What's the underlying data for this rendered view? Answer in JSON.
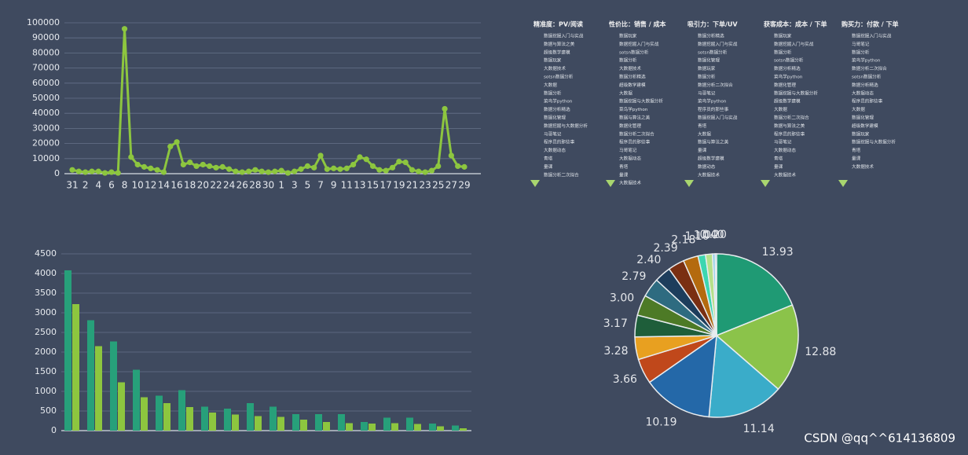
{
  "chart_data": [
    {
      "type": "line",
      "color": "#8dc63f",
      "ylim": [
        0,
        100000
      ],
      "yticks": [
        0,
        10000,
        20000,
        30000,
        40000,
        50000,
        60000,
        70000,
        80000,
        90000,
        100000
      ],
      "categories": [
        "31",
        null,
        "2",
        null,
        "4",
        null,
        "6",
        null,
        "8",
        null,
        "10",
        null,
        "12",
        null,
        "14",
        null,
        "16",
        null,
        "18",
        null,
        "20",
        null,
        "22",
        null,
        "24",
        null,
        "26",
        null,
        "28",
        null,
        "30",
        null,
        "1",
        null,
        "3",
        null,
        "5",
        null,
        "7",
        null,
        "9",
        null,
        "11",
        null,
        "13",
        null,
        "15",
        null,
        "17",
        null,
        "19",
        null,
        "21",
        null,
        "23",
        null,
        "25",
        null,
        "27",
        null,
        "29"
      ],
      "values": [
        2500,
        1500,
        1000,
        1500,
        1500,
        500,
        1000,
        500,
        96000,
        11000,
        6000,
        4500,
        3500,
        2500,
        1000,
        18000,
        21000,
        6000,
        7500,
        5000,
        6000,
        5000,
        4000,
        4500,
        3000,
        1500,
        1000,
        1500,
        2500,
        1500,
        1000,
        1500,
        2000,
        500,
        1500,
        3000,
        5000,
        4000,
        12000,
        3000,
        3500,
        3000,
        3500,
        6000,
        11000,
        9500,
        5000,
        2500,
        2000,
        4000,
        8000,
        7500,
        2500,
        1500,
        1000,
        2000,
        5000,
        43000,
        12000,
        5000,
        4500
      ],
      "grid": true
    },
    {
      "type": "bar",
      "ylim": [
        0,
        4500
      ],
      "yticks": [
        0,
        500,
        1000,
        1500,
        2000,
        2500,
        3000,
        3500,
        4000,
        4500
      ],
      "grid": true,
      "series": [
        {
          "color": "#27a07a",
          "values": [
            4080,
            2810,
            2270,
            1550,
            890,
            1030,
            610,
            560,
            700,
            610,
            420,
            420,
            420,
            220,
            330,
            330,
            180,
            130
          ]
        },
        {
          "color": "#8dc63f",
          "values": [
            3220,
            2150,
            1230,
            850,
            700,
            600,
            460,
            410,
            370,
            350,
            280,
            220,
            190,
            180,
            190,
            170,
            110,
            60
          ]
        }
      ]
    },
    {
      "type": "pie",
      "values": [
        13.93,
        12.88,
        11.14,
        10.19,
        3.66,
        3.28,
        3.17,
        3.0,
        2.79,
        2.4,
        2.39,
        2.18,
        1.1,
        1.0,
        0.4,
        0.2
      ],
      "value_labels": [
        "13.93",
        "12.88",
        "11.14",
        "10.19",
        "3.66",
        "3.28",
        "3.17",
        "3.00",
        "2.79",
        "2.40",
        "2.39",
        "2.18",
        "1.10",
        "1.00",
        "0.40",
        "0.20"
      ],
      "colors": [
        "#1f9a74",
        "#8bc34a",
        "#3aacc9",
        "#2468a8",
        "#c0481b",
        "#e8a020",
        "#1e5e3a",
        "#4d7a26",
        "#2e6b80",
        "#1d3d5c",
        "#7a2f12",
        "#b46a0e",
        "#3dd6b0",
        "#b5e08a",
        "#8ed0e8",
        "#2a7fd0"
      ]
    }
  ],
  "rankings": [
    {
      "title": "精准度：PV/阅读",
      "items": [
        "数据挖掘入门与实战",
        "数据与算法之美",
        "超级数学建模",
        "数据玩家",
        "大数据技术",
        "sotsn数据分析",
        "大数据",
        "数据分析",
        "菜鸟学python",
        "数据分析精选",
        "数据化管理",
        "数据挖掘与大数据分析",
        "马哥笔记",
        "程序员的那些事",
        "大数据动态",
        "青塔",
        "量课",
        "数据分析二次拟合"
      ]
    },
    {
      "title": "性价比：销售 / 成本",
      "items": [
        "数据玩家",
        "数据挖掘入门与实战",
        "sotsn数据分析",
        "数据分析",
        "大数据技术",
        "数据分析精选",
        "超级数学建模",
        "大数据",
        "数据挖掘与大数据分析",
        "菜鸟学python",
        "数据与算法之美",
        "数据化管理",
        "数据分析二次拟合",
        "程序员的那些事",
        "马哥笔记",
        "大数据动态",
        "青塔",
        "量课",
        "大数据技术"
      ]
    },
    {
      "title": "吸引力：下单/UV",
      "items": [
        "数据分析精选",
        "数据挖掘入门与实战",
        "sotsn数据分析",
        "数据化管理",
        "数据玩家",
        "数据分析",
        "数据分析二次拟合",
        "马哥笔记",
        "菜鸟学python",
        "程序员的那些事",
        "数据挖掘入门与实战",
        "青塔",
        "大数据",
        "数据与算法之美",
        "量课",
        "超级数学建模",
        "数据动态",
        "大数据技术"
      ]
    },
    {
      "title": "获客成本：成本 / 下单",
      "items": [
        "数据玩家",
        "数据挖掘入门与实战",
        "数据分析",
        "sotsn数据分析",
        "数据分析精选",
        "菜鸟学python",
        "数据化管理",
        "数据挖掘与大数据分析",
        "超级数学建模",
        "大数据",
        "数据分析二次拟合",
        "数据与算法之美",
        "程序员的那些事",
        "马哥笔记",
        "大数据动态",
        "青塔",
        "量课",
        "大数据技术"
      ]
    },
    {
      "title": "购买力：付款 / 下单",
      "items": [
        "数据挖掘入门与实战",
        "马哥笔记",
        "数据分析",
        "菜鸟学python",
        "数据分析二次拟合",
        "sotsn数据分析",
        "数据分析精选",
        "大数据动态",
        "程序员的那些事",
        "大数据",
        "数据化管理",
        "超级数学建模",
        "数据玩家",
        "数据挖掘与大数据分析",
        "青塔",
        "量课",
        "大数据技术"
      ]
    }
  ],
  "watermark": "CSDN @qq^^614136809"
}
